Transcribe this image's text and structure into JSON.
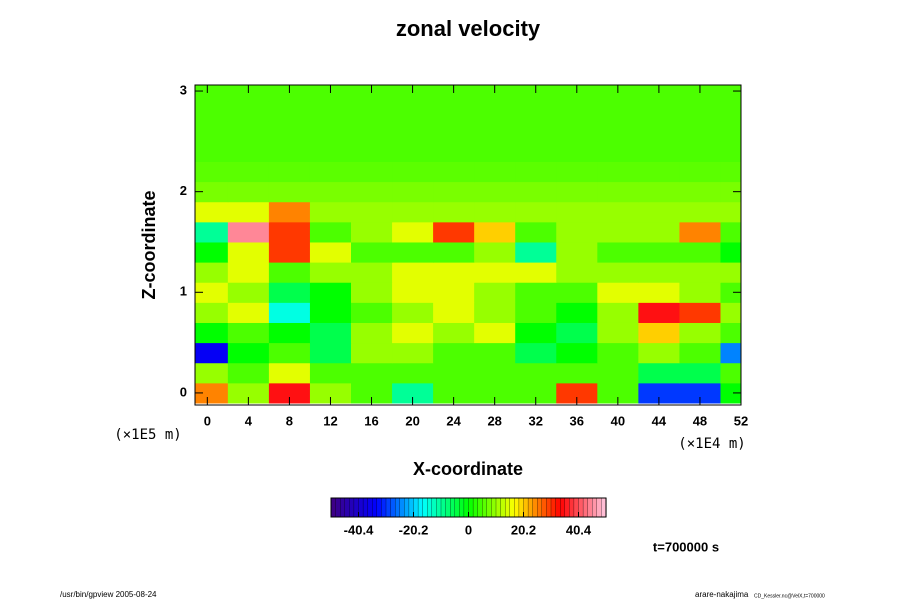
{
  "chart_data": {
    "type": "heatmap",
    "title": "zonal velocity",
    "x_label": "X-coordinate",
    "y_label": "Z-coordinate",
    "x_unit": "(×1E4 m)",
    "y_unit": "(×1E5 m)",
    "time_label": "t=700000 s",
    "footer_left": "/usr/bin/gpview 2005-08-24",
    "footer_right": "arare-nakajima",
    "footer_right_small": "CD_Kessler.nc@VelX,t=700000",
    "x": [
      0,
      4,
      8,
      12,
      16,
      20,
      24,
      28,
      32,
      36,
      40,
      44,
      48,
      52
    ],
    "z": [
      0,
      0.2,
      0.4,
      0.6,
      0.8,
      1.0,
      1.2,
      1.4,
      1.6,
      1.8,
      2.0,
      2.2,
      2.4,
      2.6,
      2.8,
      3.0
    ],
    "values": [
      [
        25,
        10,
        35,
        10,
        5,
        -10,
        5,
        5,
        5,
        30,
        5,
        -30,
        -30,
        0
      ],
      [
        10,
        5,
        15,
        5,
        5,
        5,
        5,
        5,
        5,
        5,
        5,
        -5,
        -5,
        5
      ],
      [
        -35,
        0,
        5,
        -5,
        10,
        10,
        5,
        5,
        -5,
        0,
        5,
        10,
        5,
        -25
      ],
      [
        0,
        5,
        0,
        -5,
        10,
        15,
        10,
        15,
        0,
        -5,
        10,
        20,
        10,
        5
      ],
      [
        10,
        15,
        -15,
        0,
        5,
        10,
        15,
        10,
        5,
        0,
        10,
        35,
        30,
        10
      ],
      [
        15,
        10,
        -5,
        0,
        10,
        15,
        15,
        10,
        5,
        5,
        15,
        15,
        10,
        5
      ],
      [
        10,
        15,
        5,
        10,
        10,
        15,
        15,
        15,
        15,
        10,
        10,
        10,
        10,
        10
      ],
      [
        0,
        15,
        30,
        15,
        5,
        5,
        5,
        10,
        -10,
        10,
        5,
        5,
        5,
        0
      ],
      [
        -10,
        45,
        30,
        5,
        10,
        15,
        30,
        20,
        5,
        10,
        10,
        10,
        25,
        5
      ],
      [
        15,
        15,
        25,
        10,
        10,
        10,
        10,
        10,
        10,
        10,
        10,
        10,
        10,
        10
      ],
      [
        8,
        8,
        8,
        8,
        8,
        8,
        8,
        8,
        8,
        8,
        8,
        8,
        8,
        8
      ],
      [
        6,
        6,
        6,
        6,
        6,
        6,
        6,
        6,
        6,
        6,
        6,
        6,
        6,
        6
      ],
      [
        5,
        5,
        5,
        5,
        5,
        5,
        5,
        5,
        5,
        5,
        5,
        5,
        5,
        5
      ],
      [
        5,
        5,
        5,
        5,
        5,
        5,
        5,
        5,
        5,
        5,
        5,
        5,
        5,
        5
      ],
      [
        5,
        5,
        5,
        5,
        5,
        5,
        5,
        5,
        5,
        5,
        5,
        5,
        5,
        5
      ],
      [
        5,
        5,
        5,
        5,
        5,
        5,
        5,
        5,
        5,
        5,
        5,
        5,
        5,
        5
      ]
    ],
    "xlim": [
      -1.2,
      52
    ],
    "ylim": [
      -0.12,
      3.06
    ],
    "xticks": [
      0,
      4,
      8,
      12,
      16,
      20,
      24,
      28,
      32,
      36,
      40,
      44,
      48,
      52
    ],
    "yticks": [
      0,
      1,
      2,
      3
    ],
    "clim": [
      -50.5,
      50.5
    ],
    "cticks": [
      -40.4,
      -20.2,
      0,
      20.2,
      40.4
    ],
    "colormap": [
      "#400080",
      "#0000ff",
      "#00ffff",
      "#00ff00",
      "#ffff00",
      "#ff0000",
      "#ffc8e0"
    ]
  }
}
